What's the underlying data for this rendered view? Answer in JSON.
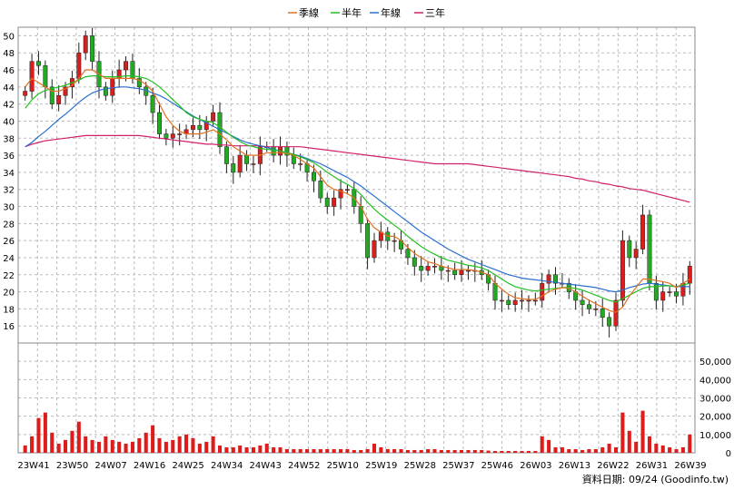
{
  "chart_data": {
    "type": "candlestick",
    "legend": [
      {
        "name": "季線",
        "color": "#e07020"
      },
      {
        "name": "半年",
        "color": "#22c022"
      },
      {
        "name": "年線",
        "color": "#2a6fd0"
      },
      {
        "name": "三年",
        "color": "#d0206a"
      }
    ],
    "price_axis": {
      "min": 14,
      "max": 51,
      "ticks": [
        16,
        18,
        20,
        22,
        24,
        26,
        28,
        30,
        32,
        34,
        36,
        38,
        40,
        42,
        44,
        46,
        48,
        50
      ],
      "side": "left"
    },
    "volume_axis": {
      "min": 0,
      "max": 60000,
      "ticks": [
        0,
        10000,
        20000,
        30000,
        40000,
        50000
      ],
      "tick_labels": [
        "0",
        "10,000",
        "20,000",
        "30,000",
        "40,000",
        "50,000"
      ],
      "side": "right"
    },
    "x_labels": [
      "23W41",
      "23W50",
      "24W07",
      "24W16",
      "24W25",
      "24W34",
      "24W43",
      "24W52",
      "25W10",
      "25W19",
      "25W28",
      "25W37",
      "25W46",
      "26W03",
      "26W13",
      "26W22",
      "26W31",
      "26W39"
    ],
    "grid": true,
    "up_color": "#d81e1e",
    "down_color": "#22aa22",
    "footer": "資料日期: 09/24   (Goodinfo.tw)",
    "closes": [
      43.5,
      47,
      46.5,
      44,
      42,
      43,
      44,
      45,
      48,
      50,
      47,
      44,
      43,
      45,
      46,
      47,
      45,
      44,
      43,
      41,
      38.5,
      38,
      38.5,
      38.5,
      39,
      39.5,
      39,
      40,
      41,
      37,
      35,
      34,
      36,
      35,
      35,
      37,
      37,
      36,
      37,
      36,
      35,
      35,
      34,
      33,
      31,
      30,
      31,
      32,
      32,
      30,
      28,
      24,
      26,
      27,
      26,
      26,
      25,
      24,
      23,
      22.5,
      23,
      23,
      22.5,
      22.5,
      22,
      22.5,
      22.5,
      22.5,
      22,
      21,
      19,
      19,
      18.5,
      19,
      19,
      19,
      19,
      21,
      22,
      21,
      21,
      20,
      19,
      18.5,
      18,
      18,
      17,
      16,
      19,
      26,
      24,
      25,
      29,
      21,
      19,
      20,
      20,
      19.5,
      21,
      23
    ],
    "ma_quarter": [
      44,
      45,
      44.5,
      44,
      43.5,
      43.5,
      43.8,
      44.2,
      45,
      46,
      46,
      45.5,
      45,
      45,
      45,
      45,
      45,
      44.8,
      44.3,
      43.5,
      42,
      40.5,
      39.5,
      38.8,
      38.5,
      38.5,
      38.5,
      38.7,
      39,
      38.5,
      37.8,
      37,
      36.5,
      36,
      36,
      36,
      36.3,
      36.3,
      36.3,
      36.2,
      36,
      35.5,
      35,
      34.5,
      33.5,
      32.5,
      32,
      31.8,
      31.5,
      31,
      30,
      28.5,
      27.5,
      27,
      26.5,
      26.5,
      26,
      25.2,
      24.5,
      24,
      23.5,
      23.3,
      23,
      22.8,
      22.6,
      22.6,
      22.6,
      22.5,
      22.3,
      22,
      21,
      20.3,
      19.7,
      19.3,
      19.2,
      19.1,
      19.1,
      19.5,
      20,
      20.3,
      20.5,
      20.4,
      20,
      19.5,
      19,
      18.6,
      18.2,
      17.8,
      17.6,
      18.2,
      19.5,
      20.5,
      21.5,
      21.5,
      21.3,
      21.2,
      21,
      20.5,
      21,
      21.5
    ],
    "ma_half": [
      41.5,
      42.5,
      43.2,
      43.6,
      43.8,
      44,
      44.2,
      44.5,
      44.8,
      45.2,
      45.3,
      45.3,
      45.2,
      45.2,
      45.2,
      45.3,
      45.3,
      45.2,
      45,
      44.6,
      44,
      43.3,
      42.5,
      41.8,
      41,
      40.5,
      40.2,
      40,
      39.8,
      39.3,
      38.7,
      38.1,
      37.6,
      37.2,
      37,
      36.8,
      36.7,
      36.6,
      36.5,
      36.3,
      36.1,
      35.8,
      35.5,
      35.1,
      34.6,
      34,
      33.5,
      33,
      32.6,
      32.1,
      31.4,
      30.5,
      29.7,
      29,
      28.4,
      27.8,
      27.2,
      26.5,
      25.9,
      25.3,
      24.8,
      24.4,
      24,
      23.7,
      23.5,
      23.3,
      23.1,
      23,
      22.8,
      22.5,
      22,
      21.5,
      21,
      20.6,
      20.4,
      20.2,
      20.1,
      20.2,
      20.3,
      20.4,
      20.5,
      20.5,
      20.4,
      20.2,
      19.9,
      19.6,
      19.3,
      19,
      18.8,
      19.2,
      19.6,
      20,
      20.4,
      20.6,
      20.6,
      20.7,
      20.7,
      20.6,
      20.8,
      21
    ],
    "ma_year": [
      37,
      37.5,
      38.2,
      38.8,
      39.5,
      40.2,
      40.8,
      41.5,
      42.2,
      42.8,
      43.3,
      43.6,
      43.8,
      43.9,
      44,
      44,
      43.9,
      43.8,
      43.6,
      43.3,
      43,
      42.6,
      42.1,
      41.6,
      41.1,
      40.6,
      40.2,
      39.8,
      39.4,
      39,
      38.6,
      38.2,
      37.8,
      37.5,
      37.3,
      37.1,
      36.9,
      36.7,
      36.5,
      36.3,
      36.1,
      35.9,
      35.6,
      35.3,
      35,
      34.6,
      34.2,
      33.8,
      33.4,
      32.9,
      32.4,
      31.8,
      31.2,
      30.6,
      30,
      29.4,
      28.8,
      28.2,
      27.6,
      27,
      26.5,
      26,
      25.5,
      25,
      24.6,
      24.2,
      23.8,
      23.5,
      23.2,
      22.9,
      22.6,
      22.3,
      22,
      21.8,
      21.6,
      21.5,
      21.4,
      21.3,
      21.2,
      21.1,
      21,
      20.9,
      20.8,
      20.7,
      20.6,
      20.5,
      20.3,
      20.1,
      20,
      20.2,
      20.5,
      20.7,
      20.9,
      21,
      20.9,
      20.8,
      20.7,
      20.6,
      20.6,
      20.6
    ],
    "ma_3year": [
      37,
      37.3,
      37.5,
      37.7,
      37.8,
      37.9,
      38,
      38.1,
      38.2,
      38.3,
      38.3,
      38.3,
      38.3,
      38.3,
      38.3,
      38.3,
      38.3,
      38.3,
      38.2,
      38.1,
      38,
      37.9,
      37.8,
      37.7,
      37.6,
      37.5,
      37.4,
      37.3,
      37.3,
      37.2,
      37.2,
      37.1,
      37.1,
      37.1,
      37.1,
      37.1,
      37,
      37,
      37,
      37,
      37,
      37,
      36.9,
      36.8,
      36.7,
      36.6,
      36.5,
      36.4,
      36.3,
      36.2,
      36.1,
      36,
      35.9,
      35.8,
      35.7,
      35.6,
      35.5,
      35.4,
      35.3,
      35.2,
      35.1,
      35,
      35,
      35,
      35,
      35,
      35,
      34.9,
      34.8,
      34.7,
      34.6,
      34.5,
      34.4,
      34.3,
      34.2,
      34.1,
      34,
      33.9,
      33.8,
      33.7,
      33.6,
      33.5,
      33.3,
      33.2,
      33,
      32.9,
      32.7,
      32.6,
      32.4,
      32.3,
      32.1,
      32,
      31.9,
      31.7,
      31.5,
      31.3,
      31.1,
      30.9,
      30.7,
      30.5
    ],
    "volumes": [
      4000,
      9000,
      19000,
      22000,
      11000,
      5000,
      7000,
      12000,
      17000,
      9000,
      7000,
      6000,
      9000,
      7000,
      6000,
      5000,
      6000,
      8000,
      11000,
      15000,
      8000,
      6000,
      7000,
      9000,
      10000,
      8000,
      5000,
      6000,
      9000,
      4000,
      3000,
      3000,
      4000,
      3000,
      3000,
      4000,
      5000,
      3000,
      3000,
      2000,
      2000,
      2000,
      2000,
      2000,
      2000,
      2000,
      2000,
      2000,
      2000,
      1500,
      1500,
      2000,
      5000,
      3000,
      2000,
      2000,
      2000,
      1500,
      1500,
      1500,
      2000,
      2000,
      1500,
      1500,
      1500,
      1500,
      1500,
      1500,
      1500,
      1200,
      1000,
      1000,
      1000,
      1000,
      1000,
      1000,
      1000,
      9000,
      7000,
      3000,
      3000,
      2000,
      2000,
      1500,
      2000,
      2000,
      3000,
      5000,
      3000,
      22000,
      12000,
      6000,
      23000,
      9000,
      5000,
      4000,
      3000,
      2000,
      3000,
      10000
    ]
  }
}
